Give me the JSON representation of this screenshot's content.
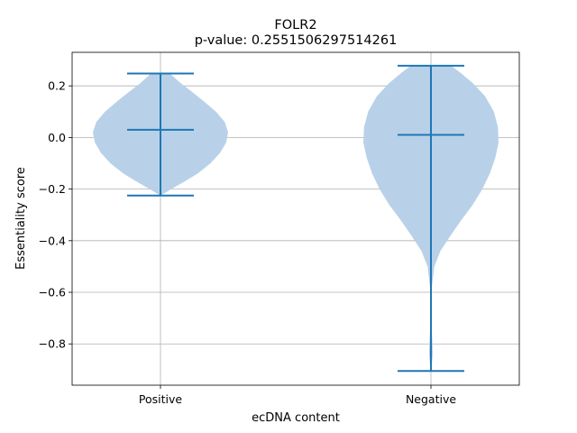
{
  "chart_data": {
    "type": "violin",
    "title": "FOLR2",
    "subtitle": "p-value: 0.2551506297514261",
    "xlabel": "ecDNA content",
    "ylabel": "Essentiality score",
    "categories": [
      "Positive",
      "Negative"
    ],
    "ylim": [
      -0.96,
      0.33
    ],
    "yticks": [
      0.2,
      0.0,
      -0.2,
      -0.4,
      -0.6,
      -0.8
    ],
    "ytick_labels": [
      "0.2",
      "0.0",
      "−0.2",
      "−0.4",
      "−0.6",
      "−0.8"
    ],
    "grid": true,
    "colors": {
      "body": "#b8d1e8",
      "line": "#1f77b4",
      "grid": "#b0b0b0"
    },
    "violins": [
      {
        "category": "Positive",
        "min": -0.225,
        "max": 0.248,
        "median": 0.03,
        "density": [
          [
            -0.225,
            0.0
          ],
          [
            -0.2,
            0.16
          ],
          [
            -0.17,
            0.36
          ],
          [
            -0.14,
            0.55
          ],
          [
            -0.1,
            0.74
          ],
          [
            -0.06,
            0.88
          ],
          [
            -0.02,
            0.97
          ],
          [
            0.02,
            1.0
          ],
          [
            0.06,
            0.95
          ],
          [
            0.1,
            0.82
          ],
          [
            0.14,
            0.64
          ],
          [
            0.18,
            0.45
          ],
          [
            0.21,
            0.3
          ],
          [
            0.248,
            0.14
          ]
        ]
      },
      {
        "category": "Negative",
        "min": -0.905,
        "max": 0.278,
        "median": 0.01,
        "density": [
          [
            -0.905,
            0.0
          ],
          [
            -0.88,
            0.015
          ],
          [
            -0.84,
            0.028
          ],
          [
            -0.8,
            0.024
          ],
          [
            -0.74,
            0.012
          ],
          [
            -0.66,
            0.008
          ],
          [
            -0.58,
            0.014
          ],
          [
            -0.5,
            0.05
          ],
          [
            -0.44,
            0.14
          ],
          [
            -0.38,
            0.29
          ],
          [
            -0.32,
            0.45
          ],
          [
            -0.26,
            0.62
          ],
          [
            -0.2,
            0.76
          ],
          [
            -0.14,
            0.87
          ],
          [
            -0.08,
            0.95
          ],
          [
            -0.02,
            1.0
          ],
          [
            0.04,
            0.99
          ],
          [
            0.1,
            0.93
          ],
          [
            0.16,
            0.8
          ],
          [
            0.21,
            0.62
          ],
          [
            0.25,
            0.44
          ],
          [
            0.278,
            0.3
          ]
        ]
      }
    ]
  }
}
